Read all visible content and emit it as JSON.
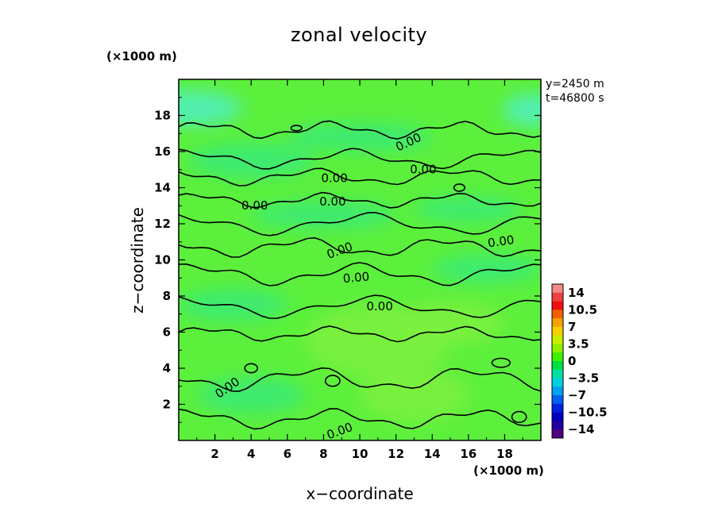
{
  "chart_data": {
    "type": "heatmap",
    "title": "zonal velocity",
    "xlabel": "x−coordinate",
    "ylabel": "z−coordinate",
    "x_unit": "(×1000 m)",
    "y_unit": "(×1000 m)",
    "annotations": [
      "y=2450 m",
      "t=46800 s"
    ],
    "xlim": [
      0,
      20
    ],
    "ylim": [
      0,
      20
    ],
    "x_ticks": [
      2,
      4,
      6,
      8,
      10,
      12,
      14,
      16,
      18
    ],
    "y_ticks": [
      2,
      4,
      6,
      8,
      10,
      12,
      14,
      16,
      18
    ],
    "colorbar": {
      "tick_labels": [
        "14",
        "10.5",
        "7",
        "3.5",
        "0",
        "−3.5",
        "−7",
        "−10.5",
        "−14"
      ],
      "levels": [
        14,
        10.5,
        7,
        3.5,
        0,
        -3.5,
        -7,
        -10.5,
        -14
      ],
      "colors": [
        "#f28a8a",
        "#f04040",
        "#f01010",
        "#f06000",
        "#f5a300",
        "#f5d000",
        "#c8f000",
        "#8ef000",
        "#3ef000",
        "#00e040",
        "#00e0a0",
        "#00d0e0",
        "#00a0f0",
        "#0060f0",
        "#0020e0",
        "#0000c0",
        "#2000a0",
        "#500080"
      ]
    },
    "contour_labels": [
      {
        "text": "0.00",
        "x": 12.7,
        "z": 16.5,
        "angle": -25
      },
      {
        "text": "0.00",
        "x": 13.5,
        "z": 15.0,
        "angle": 0
      },
      {
        "text": "0.00",
        "x": 8.6,
        "z": 14.5,
        "angle": 0
      },
      {
        "text": "0.00",
        "x": 4.2,
        "z": 13.0,
        "angle": 0
      },
      {
        "text": "0.00",
        "x": 8.5,
        "z": 13.2,
        "angle": 0
      },
      {
        "text": "0.00",
        "x": 17.8,
        "z": 11.0,
        "angle": -8
      },
      {
        "text": "0.00",
        "x": 8.9,
        "z": 10.5,
        "angle": -20
      },
      {
        "text": "0.00",
        "x": 9.8,
        "z": 9.0,
        "angle": -5
      },
      {
        "text": "0.00",
        "x": 11.1,
        "z": 7.4,
        "angle": 0
      },
      {
        "text": "0.00",
        "x": 2.7,
        "z": 2.9,
        "angle": -35
      },
      {
        "text": "0.00",
        "x": 8.9,
        "z": 0.5,
        "angle": -20
      }
    ],
    "field_colors": {
      "background": "#5cf03c",
      "negative_patch": "#38ea78",
      "strong_negative_patch": "#52eec4",
      "positive_patch": "#7ef040"
    },
    "legend": "right (colorbar)",
    "grid": false
  }
}
